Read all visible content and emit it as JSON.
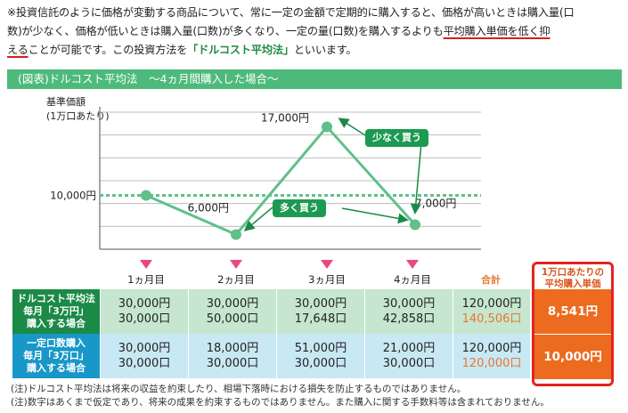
{
  "intro": {
    "line1": "※投資信託のように価格が変動する商品について、常に一定の金額で定期的に購入すると、価格が高いときは購入量(口",
    "line2_a": "数)が少なく、価格が低いときは購入量(口数)が多くなり、一定の量(口数)を購入するよりも",
    "line2_b": "平均購入単価を低く抑",
    "line3_a": "える",
    "line3_b": "ことが可能です。この投資方法を",
    "line3_q": "「ドルコスト平均法」",
    "line3_c": "といいます。"
  },
  "figure": {
    "header": "(図表)ドルコスト平均法　～4ヵ月間購入した場合～"
  },
  "chart_data": {
    "type": "line",
    "ylabel": "基準価額\n(1万口あたり)",
    "x": [
      "1ヵ月目",
      "2ヵ月目",
      "3ヵ月目",
      "4ヵ月目"
    ],
    "series": [
      {
        "values": [
          10000,
          6000,
          17000,
          7000
        ]
      }
    ],
    "point_labels": [
      "",
      "6,000円",
      "17,000円",
      "7,000円"
    ],
    "reference_line": {
      "value": 10000,
      "label": "10,000円"
    },
    "ylim": [
      4500,
      18500
    ],
    "callouts": [
      "少なく買う",
      "多く買う"
    ]
  },
  "months": [
    "1ヵ月目",
    "2ヵ月目",
    "3ヵ月目",
    "4ヵ月目"
  ],
  "total_header": "合計",
  "rows": [
    {
      "label": [
        "ドルコスト平均法",
        "毎月「3万円」",
        "購入する場合"
      ],
      "cells": [
        [
          "30,000円",
          "30,000口"
        ],
        [
          "30,000円",
          "50,000口"
        ],
        [
          "30,000円",
          "17,648口"
        ],
        [
          "30,000円",
          "42,858口"
        ]
      ],
      "total": [
        "120,000円",
        "140,506口"
      ],
      "avg": "8,541円"
    },
    {
      "label": [
        "一定口数購入",
        "毎月「3万口」",
        "購入する場合"
      ],
      "cells": [
        [
          "30,000円",
          "30,000口"
        ],
        [
          "18,000円",
          "30,000口"
        ],
        [
          "51,000円",
          "30,000口"
        ],
        [
          "21,000円",
          "30,000口"
        ]
      ],
      "total": [
        "120,000円",
        "120,000口"
      ],
      "avg": "10,000円"
    }
  ],
  "avg_header": [
    "1万口あたりの",
    "平均購入単価"
  ],
  "notes": [
    "(注)ドルコスト平均法は将来の収益を約束したり、相場下落時における損失を防止するものではありません。",
    "(注)数字はあくまで仮定であり、将来の成果を約束するものではありません。また購入に関する手数料等は含まれておりません。"
  ],
  "colors": {
    "header": "#4dba7b",
    "line": "#5fc08a",
    "dca": "#1b8a47",
    "fixed": "#1897c8",
    "avg": "#ec6b1e",
    "accent": "#e52320"
  }
}
